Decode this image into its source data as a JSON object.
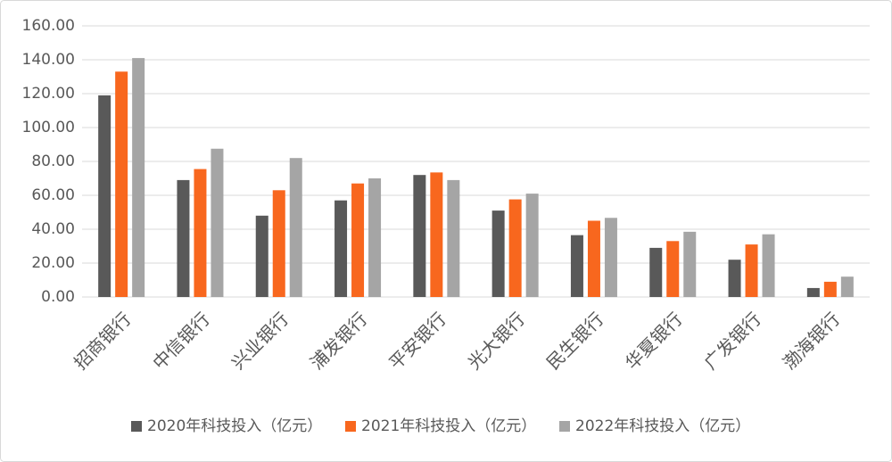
{
  "chart_data": {
    "type": "bar",
    "categories": [
      "招商银行",
      "中信银行",
      "兴业银行",
      "浦发银行",
      "平安银行",
      "光大银行",
      "民生银行",
      "华夏银行",
      "广发银行",
      "渤海银行"
    ],
    "series": [
      {
        "name": "2020年科技投入（亿元）",
        "color": "#595959",
        "values": [
          119,
          69,
          48,
          57,
          72,
          51,
          36.5,
          29,
          22,
          5.3
        ]
      },
      {
        "name": "2021年科技投入（亿元）",
        "color": "#f8671e",
        "values": [
          133,
          75.5,
          63,
          67,
          73.5,
          57.6,
          45,
          33,
          31,
          9
        ]
      },
      {
        "name": "2022年科技投入（亿元）",
        "color": "#a5a5a5",
        "values": [
          141,
          87.5,
          82,
          70,
          69,
          61,
          46.7,
          38.5,
          37,
          12
        ]
      }
    ],
    "ylim": [
      0,
      160
    ],
    "yticks": [
      {
        "value": 0,
        "label": "0.00"
      },
      {
        "value": 20,
        "label": "20.00"
      },
      {
        "value": 40,
        "label": "40.00"
      },
      {
        "value": 60,
        "label": "60.00"
      },
      {
        "value": 80,
        "label": "80.00"
      },
      {
        "value": 100,
        "label": "100.00"
      },
      {
        "value": 120,
        "label": "120.00"
      },
      {
        "value": 140,
        "label": "140.00"
      },
      {
        "value": 160,
        "label": "160.00"
      }
    ],
    "grid": true,
    "legend": "bottom"
  }
}
